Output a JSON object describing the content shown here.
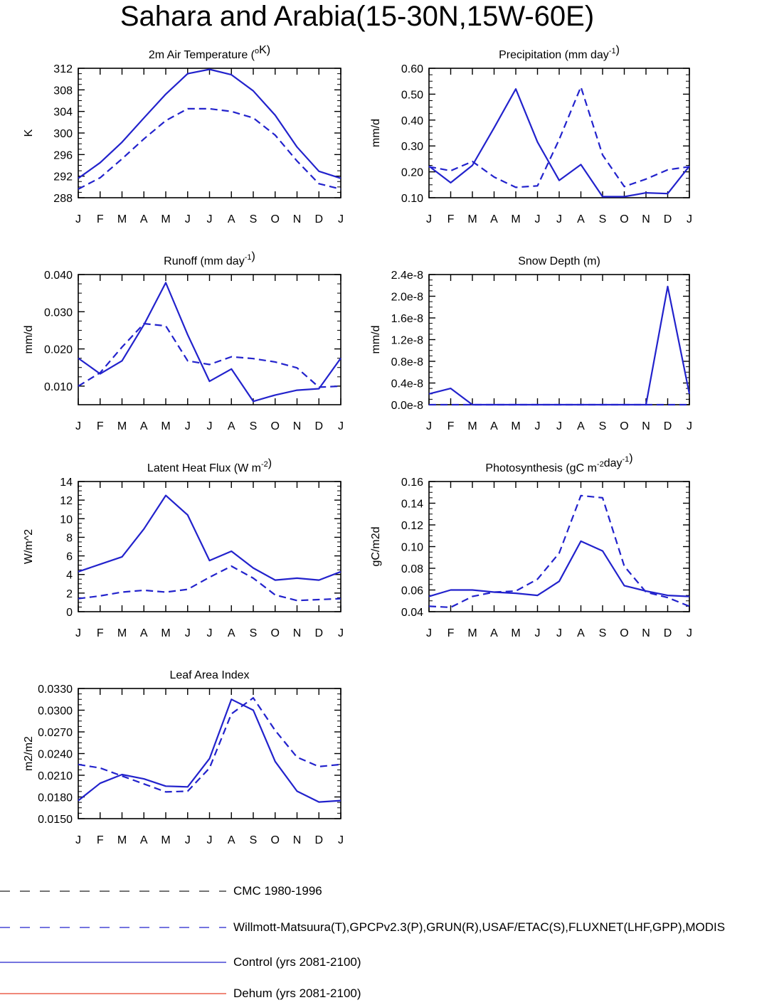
{
  "page": {
    "title": "Sahara and Arabia(15-30N,15W-60E)"
  },
  "month_labels": [
    "J",
    "F",
    "M",
    "A",
    "M",
    "J",
    "J",
    "A",
    "S",
    "O",
    "N",
    "D",
    "J"
  ],
  "colors": {
    "blue": "#2222cc",
    "black": "#222222",
    "red": "#e8402a"
  },
  "legend": [
    {
      "label": "CMC 1980-1996",
      "color": "#222222",
      "style": "dashed"
    },
    {
      "label": "Willmott-Matsuura(T),GPCPv2.3(P),GRUN(R),USAF/ETAC(S),FLUXNET(LHF,GPP),MODIS",
      "color": "#2222cc",
      "style": "dashed"
    },
    {
      "label": "Control (yrs 2081-2100)",
      "color": "#2222cc",
      "style": "solid"
    },
    {
      "label": "Dehum (yrs 2081-2100)",
      "color": "#e8402a",
      "style": "solid"
    }
  ],
  "chart_data": [
    {
      "id": "temp",
      "type": "line",
      "title": "2m Air Temperature (",
      "title_sup": "o",
      "title_post": "K)",
      "ylabel": "K",
      "ylim": [
        288,
        312
      ],
      "yticks": [
        288,
        292,
        296,
        300,
        304,
        308,
        312
      ],
      "ytick_labels": [
        "288",
        "292",
        "296",
        "300",
        "304",
        "308",
        "312"
      ],
      "categories": [
        "J",
        "F",
        "M",
        "A",
        "M",
        "J",
        "J",
        "A",
        "S",
        "O",
        "N",
        "D",
        "J"
      ],
      "series": [
        {
          "style": "solid",
          "values": [
            291.6,
            294.5,
            298.3,
            302.8,
            307.2,
            311.0,
            311.8,
            310.8,
            307.8,
            303.3,
            297.4,
            292.9,
            291.6
          ]
        },
        {
          "style": "dashed",
          "values": [
            289.6,
            291.7,
            295.2,
            298.9,
            302.3,
            304.5,
            304.5,
            304.0,
            302.8,
            299.6,
            294.8,
            290.6,
            289.6
          ]
        }
      ]
    },
    {
      "id": "precip",
      "type": "line",
      "title": "Precipitation (mm day",
      "title_sup": "-1",
      "title_post": ")",
      "ylabel": "mm/d",
      "ylim": [
        0.1,
        0.6
      ],
      "yticks": [
        0.1,
        0.2,
        0.3,
        0.4,
        0.5,
        0.6
      ],
      "ytick_labels": [
        "0.10",
        "0.20",
        "0.30",
        "0.40",
        "0.50",
        "0.60"
      ],
      "categories": [
        "J",
        "F",
        "M",
        "A",
        "M",
        "J",
        "J",
        "A",
        "S",
        "O",
        "N",
        "D",
        "J"
      ],
      "series": [
        {
          "style": "solid",
          "values": [
            0.222,
            0.158,
            0.225,
            0.37,
            0.52,
            0.315,
            0.167,
            0.228,
            0.104,
            0.104,
            0.119,
            0.116,
            0.222
          ]
        },
        {
          "style": "dashed",
          "values": [
            0.22,
            0.204,
            0.24,
            0.18,
            0.14,
            0.146,
            0.325,
            0.528,
            0.265,
            0.143,
            0.172,
            0.208,
            0.22
          ]
        }
      ]
    },
    {
      "id": "runoff",
      "type": "line",
      "title": "Runoff (mm day",
      "title_sup": "-1",
      "title_post": ")",
      "ylabel": "mm/d",
      "ylim": [
        0.005,
        0.04
      ],
      "yticks": [
        0.01,
        0.02,
        0.03,
        0.04
      ],
      "ytick_labels": [
        "0.010",
        "0.020",
        "0.030",
        "0.040"
      ],
      "categories": [
        "J",
        "F",
        "M",
        "A",
        "M",
        "J",
        "J",
        "A",
        "S",
        "O",
        "N",
        "D",
        "J"
      ],
      "series": [
        {
          "style": "solid",
          "values": [
            0.0175,
            0.0133,
            0.0168,
            0.0265,
            0.0378,
            0.0238,
            0.0113,
            0.0146,
            0.0059,
            0.0076,
            0.0089,
            0.0093,
            0.0175
          ]
        },
        {
          "style": "dashed",
          "values": [
            0.01,
            0.0136,
            0.0205,
            0.0268,
            0.0262,
            0.0168,
            0.0158,
            0.0179,
            0.0174,
            0.0165,
            0.0149,
            0.0097,
            0.01
          ]
        }
      ]
    },
    {
      "id": "snow",
      "type": "line",
      "title": "Snow Depth (m)",
      "title_sup": "",
      "title_post": "",
      "ylabel": "mm/d",
      "ylim": [
        0,
        2.4e-08
      ],
      "yticks": [
        0,
        4e-09,
        8e-09,
        1.2e-08,
        1.6e-08,
        2e-08,
        2.4e-08
      ],
      "ytick_labels": [
        "0.0e-8",
        "0.4e-8",
        "0.8e-8",
        "1.2e-8",
        "1.6e-8",
        "2.0e-8",
        "2.4e-8"
      ],
      "categories": [
        "J",
        "F",
        "M",
        "A",
        "M",
        "J",
        "J",
        "A",
        "S",
        "O",
        "N",
        "D",
        "J"
      ],
      "series": [
        {
          "style": "solid",
          "values": [
            2e-09,
            3e-09,
            0,
            0,
            0,
            0,
            0,
            0,
            0,
            0,
            0,
            2.18e-08,
            2e-09
          ]
        },
        {
          "style": "dashed",
          "values": [
            0,
            0,
            0,
            0,
            0,
            0,
            0,
            0,
            0,
            0,
            0,
            0,
            0
          ]
        }
      ]
    },
    {
      "id": "lhf",
      "type": "line",
      "title": "Latent Heat Flux (W m",
      "title_sup": "-2",
      "title_post": ")",
      "ylabel": "W/m^2",
      "ylim": [
        0,
        14
      ],
      "yticks": [
        0,
        2,
        4,
        6,
        8,
        10,
        12,
        14
      ],
      "ytick_labels": [
        "0",
        "2",
        "4",
        "6",
        "8",
        "10",
        "12",
        "14"
      ],
      "categories": [
        "J",
        "F",
        "M",
        "A",
        "M",
        "J",
        "J",
        "A",
        "S",
        "O",
        "N",
        "D",
        "J"
      ],
      "series": [
        {
          "style": "solid",
          "values": [
            4.3,
            5.1,
            5.9,
            8.9,
            12.5,
            10.4,
            5.5,
            6.5,
            4.7,
            3.4,
            3.6,
            3.4,
            4.3
          ]
        },
        {
          "style": "dashed",
          "values": [
            1.4,
            1.7,
            2.1,
            2.3,
            2.1,
            2.4,
            3.7,
            4.9,
            3.6,
            1.8,
            1.2,
            1.3,
            1.4
          ]
        }
      ]
    },
    {
      "id": "gpp",
      "type": "line",
      "title": "Photosynthesis (gC m",
      "title_sup": "-2",
      "title_mid": "day",
      "title_sup2": "-1",
      "title_post": ")",
      "ylabel": "gC/m2d",
      "ylim": [
        0.04,
        0.16
      ],
      "yticks": [
        0.04,
        0.06,
        0.08,
        0.1,
        0.12,
        0.14,
        0.16
      ],
      "ytick_labels": [
        "0.04",
        "0.06",
        "0.08",
        "0.10",
        "0.12",
        "0.14",
        "0.16"
      ],
      "categories": [
        "J",
        "F",
        "M",
        "A",
        "M",
        "J",
        "J",
        "A",
        "S",
        "O",
        "N",
        "D",
        "J"
      ],
      "series": [
        {
          "style": "solid",
          "values": [
            0.054,
            0.06,
            0.06,
            0.058,
            0.057,
            0.055,
            0.068,
            0.105,
            0.096,
            0.064,
            0.059,
            0.055,
            0.054
          ]
        },
        {
          "style": "dashed",
          "values": [
            0.045,
            0.044,
            0.054,
            0.058,
            0.059,
            0.07,
            0.094,
            0.147,
            0.145,
            0.082,
            0.058,
            0.053,
            0.045
          ]
        }
      ]
    },
    {
      "id": "lai",
      "type": "line",
      "title": "Leaf Area Index",
      "title_sup": "",
      "title_post": "",
      "ylabel": "m2/m2",
      "ylim": [
        0.015,
        0.033
      ],
      "yticks": [
        0.015,
        0.018,
        0.021,
        0.024,
        0.027,
        0.03,
        0.033
      ],
      "ytick_labels": [
        "0.0150",
        "0.0180",
        "0.0210",
        "0.0240",
        "0.0270",
        "0.0300",
        "0.0330"
      ],
      "categories": [
        "J",
        "F",
        "M",
        "A",
        "M",
        "J",
        "J",
        "A",
        "S",
        "O",
        "N",
        "D",
        "J"
      ],
      "series": [
        {
          "style": "solid",
          "values": [
            0.0175,
            0.0199,
            0.0211,
            0.0205,
            0.0195,
            0.0194,
            0.0233,
            0.0315,
            0.03,
            0.0229,
            0.0188,
            0.0173,
            0.0175
          ]
        },
        {
          "style": "dashed",
          "values": [
            0.0225,
            0.022,
            0.0209,
            0.0198,
            0.0187,
            0.0188,
            0.022,
            0.0295,
            0.0317,
            0.0272,
            0.0235,
            0.0222,
            0.0225
          ]
        }
      ]
    }
  ]
}
